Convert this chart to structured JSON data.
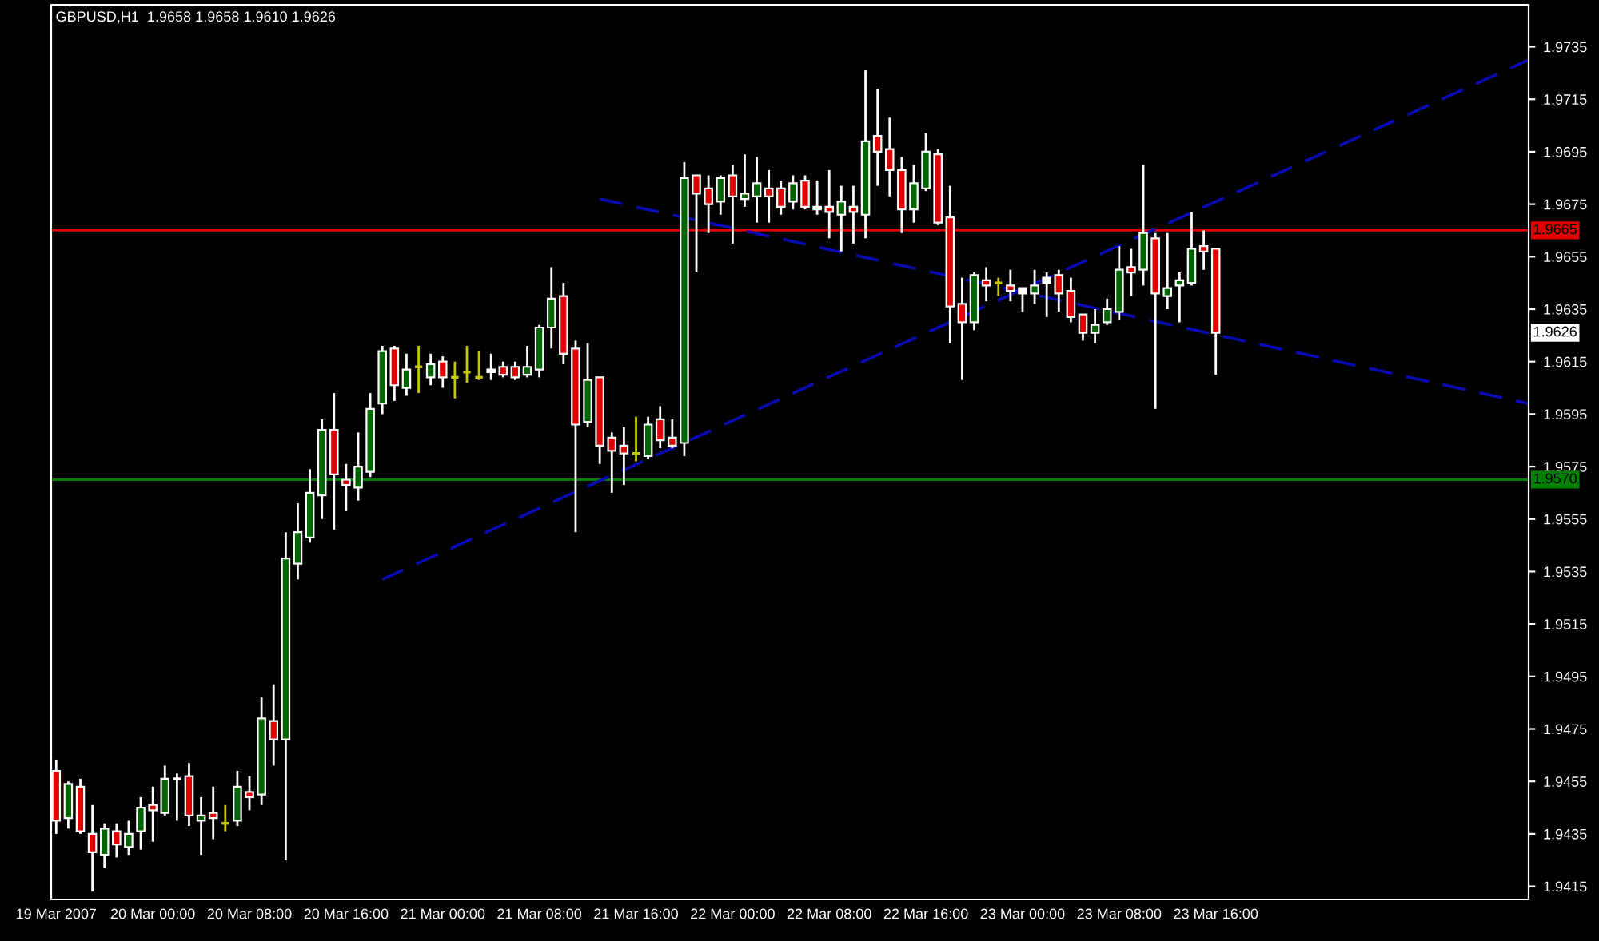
{
  "chart_data": {
    "type": "candlestick",
    "title": "GBPUSD,H1  1.9658 1.9658 1.9610 1.9626",
    "x": [
      "2007-03-19T16:00",
      "2007-03-19T17:00",
      "2007-03-19T18:00",
      "2007-03-19T19:00",
      "2007-03-19T20:00",
      "2007-03-19T21:00",
      "2007-03-19T22:00",
      "2007-03-19T23:00",
      "2007-03-20T00:00",
      "2007-03-20T01:00",
      "2007-03-20T02:00",
      "2007-03-20T03:00",
      "2007-03-20T04:00",
      "2007-03-20T05:00",
      "2007-03-20T06:00",
      "2007-03-20T07:00",
      "2007-03-20T08:00",
      "2007-03-20T09:00",
      "2007-03-20T10:00",
      "2007-03-20T11:00",
      "2007-03-20T12:00",
      "2007-03-20T13:00",
      "2007-03-20T14:00",
      "2007-03-20T15:00",
      "2007-03-20T16:00",
      "2007-03-20T17:00",
      "2007-03-20T18:00",
      "2007-03-20T19:00",
      "2007-03-20T20:00",
      "2007-03-20T21:00",
      "2007-03-20T22:00",
      "2007-03-20T23:00",
      "2007-03-21T00:00",
      "2007-03-21T01:00",
      "2007-03-21T02:00",
      "2007-03-21T03:00",
      "2007-03-21T04:00",
      "2007-03-21T05:00",
      "2007-03-21T06:00",
      "2007-03-21T07:00",
      "2007-03-21T08:00",
      "2007-03-21T09:00",
      "2007-03-21T10:00",
      "2007-03-21T11:00",
      "2007-03-21T12:00",
      "2007-03-21T13:00",
      "2007-03-21T14:00",
      "2007-03-21T15:00",
      "2007-03-21T16:00",
      "2007-03-21T17:00",
      "2007-03-21T18:00",
      "2007-03-21T19:00",
      "2007-03-21T20:00",
      "2007-03-21T21:00",
      "2007-03-21T22:00",
      "2007-03-21T23:00",
      "2007-03-22T00:00",
      "2007-03-22T01:00",
      "2007-03-22T02:00",
      "2007-03-22T03:00",
      "2007-03-22T04:00",
      "2007-03-22T05:00",
      "2007-03-22T06:00",
      "2007-03-22T07:00",
      "2007-03-22T08:00",
      "2007-03-22T09:00",
      "2007-03-22T10:00",
      "2007-03-22T11:00",
      "2007-03-22T12:00",
      "2007-03-22T13:00",
      "2007-03-22T14:00",
      "2007-03-22T15:00",
      "2007-03-22T16:00",
      "2007-03-22T17:00",
      "2007-03-22T18:00",
      "2007-03-22T19:00",
      "2007-03-22T20:00",
      "2007-03-22T21:00",
      "2007-03-22T22:00",
      "2007-03-22T23:00",
      "2007-03-23T00:00",
      "2007-03-23T01:00",
      "2007-03-23T02:00",
      "2007-03-23T03:00",
      "2007-03-23T04:00",
      "2007-03-23T05:00",
      "2007-03-23T06:00",
      "2007-03-23T07:00",
      "2007-03-23T08:00",
      "2007-03-23T09:00",
      "2007-03-23T10:00",
      "2007-03-23T11:00",
      "2007-03-23T12:00",
      "2007-03-23T13:00",
      "2007-03-23T14:00",
      "2007-03-23T15:00",
      "2007-03-23T16:00"
    ],
    "ohlc": [
      [
        1.9459,
        1.9463,
        1.9435,
        1.944
      ],
      [
        1.9441,
        1.9455,
        1.9437,
        1.9454
      ],
      [
        1.9453,
        1.9456,
        1.9435,
        1.9436
      ],
      [
        1.9435,
        1.9446,
        1.9413,
        1.9428
      ],
      [
        1.9427,
        1.9439,
        1.9422,
        1.9437
      ],
      [
        1.9436,
        1.9439,
        1.9426,
        1.9431
      ],
      [
        1.943,
        1.944,
        1.9427,
        1.9435
      ],
      [
        1.9436,
        1.9449,
        1.9429,
        1.9445
      ],
      [
        1.9446,
        1.9453,
        1.9432,
        1.9444
      ],
      [
        1.9443,
        1.9461,
        1.9442,
        1.9456
      ],
      [
        1.9456,
        1.9458,
        1.944,
        1.9456
      ],
      [
        1.9457,
        1.9462,
        1.9438,
        1.9442
      ],
      [
        1.944,
        1.9449,
        1.9427,
        1.9442
      ],
      [
        1.9443,
        1.9453,
        1.9433,
        1.9441
      ],
      [
        1.9439,
        1.9446,
        1.9436,
        1.9439
      ],
      [
        1.944,
        1.9459,
        1.9438,
        1.9453
      ],
      [
        1.9451,
        1.9457,
        1.9444,
        1.9449
      ],
      [
        1.945,
        1.9487,
        1.9446,
        1.9479
      ],
      [
        1.9478,
        1.9492,
        1.9461,
        1.9471
      ],
      [
        1.9471,
        1.955,
        1.9425,
        1.954
      ],
      [
        1.9538,
        1.9561,
        1.9532,
        1.955
      ],
      [
        1.9548,
        1.9574,
        1.9546,
        1.9565
      ],
      [
        1.9564,
        1.9593,
        1.9555,
        1.9589
      ],
      [
        1.9589,
        1.9603,
        1.9551,
        1.9572
      ],
      [
        1.957,
        1.9576,
        1.9558,
        1.9568
      ],
      [
        1.9567,
        1.9588,
        1.9562,
        1.9575
      ],
      [
        1.9573,
        1.9603,
        1.9571,
        1.9597
      ],
      [
        1.9599,
        1.9621,
        1.9595,
        1.9619
      ],
      [
        1.962,
        1.9621,
        1.96,
        1.9606
      ],
      [
        1.9605,
        1.9618,
        1.9602,
        1.9612
      ],
      [
        1.9613,
        1.9621,
        1.9603,
        1.9613
      ],
      [
        1.9609,
        1.9618,
        1.9606,
        1.9614
      ],
      [
        1.9615,
        1.9617,
        1.9605,
        1.9609
      ],
      [
        1.9609,
        1.9615,
        1.9601,
        1.9609
      ],
      [
        1.9611,
        1.9621,
        1.9607,
        1.9611
      ],
      [
        1.9609,
        1.9619,
        1.9608,
        1.9609
      ],
      [
        1.9611,
        1.9618,
        1.9608,
        1.9612
      ],
      [
        1.9613,
        1.9615,
        1.9609,
        1.961
      ],
      [
        1.9613,
        1.9615,
        1.9608,
        1.9609
      ],
      [
        1.961,
        1.9621,
        1.9609,
        1.9613
      ],
      [
        1.9612,
        1.9629,
        1.9609,
        1.9628
      ],
      [
        1.9628,
        1.9651,
        1.962,
        1.9639
      ],
      [
        1.964,
        1.9645,
        1.9614,
        1.9618
      ],
      [
        1.962,
        1.9623,
        1.955,
        1.9591
      ],
      [
        1.9592,
        1.9622,
        1.959,
        1.9608
      ],
      [
        1.9609,
        1.9609,
        1.9576,
        1.9583
      ],
      [
        1.9586,
        1.9588,
        1.9565,
        1.9581
      ],
      [
        1.9583,
        1.959,
        1.9568,
        1.958
      ],
      [
        1.958,
        1.9594,
        1.9577,
        1.958
      ],
      [
        1.9579,
        1.9594,
        1.9578,
        1.9591
      ],
      [
        1.9593,
        1.9598,
        1.9582,
        1.9585
      ],
      [
        1.9586,
        1.9593,
        1.9582,
        1.9583
      ],
      [
        1.9584,
        1.9691,
        1.9579,
        1.9685
      ],
      [
        1.9686,
        1.9686,
        1.9649,
        1.9679
      ],
      [
        1.9681,
        1.9686,
        1.9664,
        1.9675
      ],
      [
        1.9676,
        1.9686,
        1.9671,
        1.9685
      ],
      [
        1.9686,
        1.969,
        1.966,
        1.9678
      ],
      [
        1.9677,
        1.9694,
        1.9674,
        1.9679
      ],
      [
        1.9678,
        1.9693,
        1.9668,
        1.9683
      ],
      [
        1.9681,
        1.9688,
        1.9668,
        1.9678
      ],
      [
        1.9681,
        1.9684,
        1.9671,
        1.9674
      ],
      [
        1.9676,
        1.9686,
        1.9673,
        1.9683
      ],
      [
        1.9684,
        1.9686,
        1.9673,
        1.9674
      ],
      [
        1.9674,
        1.9684,
        1.9671,
        1.9673
      ],
      [
        1.9674,
        1.9688,
        1.9662,
        1.9672
      ],
      [
        1.9671,
        1.9682,
        1.9657,
        1.9676
      ],
      [
        1.9674,
        1.9682,
        1.966,
        1.9672
      ],
      [
        1.9671,
        1.9726,
        1.9662,
        1.9699
      ],
      [
        1.9701,
        1.9719,
        1.9682,
        1.9695
      ],
      [
        1.9696,
        1.9708,
        1.9678,
        1.9688
      ],
      [
        1.9688,
        1.9693,
        1.9664,
        1.9673
      ],
      [
        1.9673,
        1.969,
        1.9668,
        1.9683
      ],
      [
        1.9681,
        1.9702,
        1.968,
        1.9695
      ],
      [
        1.9694,
        1.9696,
        1.9667,
        1.9668
      ],
      [
        1.967,
        1.9682,
        1.9622,
        1.9636
      ],
      [
        1.9637,
        1.9647,
        1.9608,
        1.963
      ],
      [
        1.963,
        1.9649,
        1.9627,
        1.9648
      ],
      [
        1.9646,
        1.9651,
        1.9638,
        1.9644
      ],
      [
        1.9645,
        1.9647,
        1.964,
        1.9645
      ],
      [
        1.9644,
        1.965,
        1.9638,
        1.9642
      ],
      [
        1.9641,
        1.9643,
        1.9634,
        1.9643
      ],
      [
        1.9641,
        1.965,
        1.9637,
        1.9644
      ],
      [
        1.9645,
        1.9649,
        1.9632,
        1.9647
      ],
      [
        1.9648,
        1.965,
        1.9634,
        1.9641
      ],
      [
        1.9642,
        1.9647,
        1.963,
        1.9632
      ],
      [
        1.9633,
        1.9633,
        1.9623,
        1.9626
      ],
      [
        1.9626,
        1.9635,
        1.9622,
        1.9629
      ],
      [
        1.963,
        1.9639,
        1.9629,
        1.9635
      ],
      [
        1.9634,
        1.9659,
        1.9631,
        1.965
      ],
      [
        1.9651,
        1.9658,
        1.964,
        1.9649
      ],
      [
        1.965,
        1.969,
        1.9644,
        1.9664
      ],
      [
        1.9662,
        1.9664,
        1.9597,
        1.9641
      ],
      [
        1.964,
        1.9664,
        1.9635,
        1.9643
      ],
      [
        1.9644,
        1.9649,
        1.963,
        1.9646
      ],
      [
        1.9645,
        1.9672,
        1.9644,
        1.9658
      ],
      [
        1.9659,
        1.9665,
        1.965,
        1.9657
      ],
      [
        1.9658,
        1.9658,
        1.961,
        1.9626
      ]
    ],
    "colors": [
      "#e00000",
      "#006400",
      "#e00000",
      "#e00000",
      "#006400",
      "#e00000",
      "#006400",
      "#006400",
      "#e00000",
      "#006400",
      "#ffffff",
      "#e00000",
      "#006400",
      "#e00000",
      "#c8c800",
      "#006400",
      "#e00000",
      "#006400",
      "#e00000",
      "#006400",
      "#006400",
      "#006400",
      "#006400",
      "#e00000",
      "#e00000",
      "#006400",
      "#006400",
      "#006400",
      "#e00000",
      "#006400",
      "#c8c800",
      "#006400",
      "#e00000",
      "#c8c800",
      "#c8c800",
      "#c8c800",
      "#ffffff",
      "#e00000",
      "#e00000",
      "#006400",
      "#006400",
      "#006400",
      "#e00000",
      "#e00000",
      "#006400",
      "#e00000",
      "#e00000",
      "#e00000",
      "#c8c800",
      "#006400",
      "#e00000",
      "#e00000",
      "#006400",
      "#e00000",
      "#e00000",
      "#006400",
      "#e00000",
      "#006400",
      "#006400",
      "#e00000",
      "#e00000",
      "#006400",
      "#e00000",
      "#e00000",
      "#e00000",
      "#006400",
      "#e00000",
      "#006400",
      "#e00000",
      "#e00000",
      "#e00000",
      "#006400",
      "#006400",
      "#e00000",
      "#e00000",
      "#e00000",
      "#006400",
      "#e00000",
      "#c8c800",
      "#e00000",
      "#ffffff",
      "#006400",
      "#ffffff",
      "#e00000",
      "#e00000",
      "#e00000",
      "#006400",
      "#006400",
      "#006400",
      "#e00000",
      "#006400",
      "#e00000",
      "#006400",
      "#006400",
      "#006400",
      "#e00000",
      "#e00000"
    ],
    "series": [
      {
        "type": "line",
        "color": "#0a0ab4",
        "line_style": "dashed",
        "x": [
          "2007-03-20T19:00",
          "2007-03-24T17:54"
        ],
        "values": [
          1.9532,
          1.973
        ]
      },
      {
        "type": "line",
        "color": "#0a0ab4",
        "line_style": "dashed",
        "x": [
          "2007-03-21T13:00",
          "2007-03-24T17:54"
        ],
        "values": [
          1.9677,
          1.9599
        ]
      }
    ],
    "ref_lines": [
      {
        "axis": "y",
        "value": 1.9665,
        "label": "1.9665",
        "color": "#e00000"
      },
      {
        "axis": "y",
        "value": 1.957,
        "label": "1.9570",
        "color": "#008000"
      }
    ],
    "annotations": [
      {
        "text": "1.9626",
        "y": 1.9626
      }
    ],
    "xlim": [
      "2007-03-19T15:35",
      "2007-03-24T17:54"
    ],
    "xticks": [
      {
        "value": "2007-03-19T16:00",
        "label": "19 Mar 2007"
      },
      {
        "value": "2007-03-20T00:00",
        "label": "20 Mar 00:00"
      },
      {
        "value": "2007-03-20T08:00",
        "label": "20 Mar 08:00"
      },
      {
        "value": "2007-03-20T16:00",
        "label": "20 Mar 16:00"
      },
      {
        "value": "2007-03-21T00:00",
        "label": "21 Mar 00:00"
      },
      {
        "value": "2007-03-21T08:00",
        "label": "21 Mar 08:00"
      },
      {
        "value": "2007-03-21T16:00",
        "label": "21 Mar 16:00"
      },
      {
        "value": "2007-03-22T00:00",
        "label": "22 Mar 00:00"
      },
      {
        "value": "2007-03-22T08:00",
        "label": "22 Mar 08:00"
      },
      {
        "value": "2007-03-22T16:00",
        "label": "22 Mar 16:00"
      },
      {
        "value": "2007-03-23T00:00",
        "label": "23 Mar 00:00"
      },
      {
        "value": "2007-03-23T08:00",
        "label": "23 Mar 08:00"
      },
      {
        "value": "2007-03-23T16:00",
        "label": "23 Mar 16:00"
      }
    ],
    "ylim": [
      1.941,
      1.9751
    ],
    "yticks": [
      1.9415,
      1.9435,
      1.9455,
      1.9475,
      1.9495,
      1.9515,
      1.9535,
      1.9555,
      1.9575,
      1.9595,
      1.9615,
      1.9635,
      1.9655,
      1.9675,
      1.9695,
      1.9715,
      1.9735
    ],
    "grid": false,
    "legend": false
  }
}
